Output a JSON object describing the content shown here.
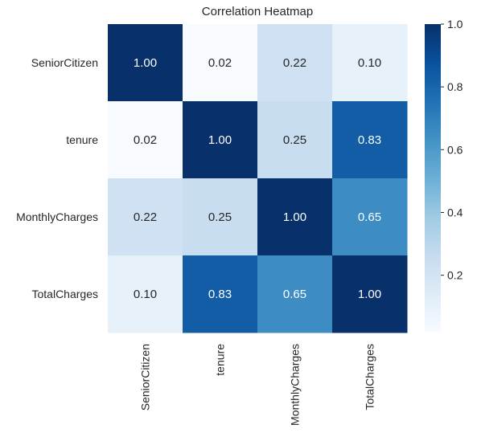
{
  "chart_data": {
    "type": "heatmap",
    "title": "Correlation Heatmap",
    "xlabel": "",
    "ylabel": "",
    "x_categories": [
      "SeniorCitizen",
      "tenure",
      "MonthlyCharges",
      "TotalCharges"
    ],
    "y_categories": [
      "SeniorCitizen",
      "tenure",
      "MonthlyCharges",
      "TotalCharges"
    ],
    "values": [
      [
        1.0,
        0.02,
        0.22,
        0.1
      ],
      [
        0.02,
        1.0,
        0.25,
        0.83
      ],
      [
        0.22,
        0.25,
        1.0,
        0.65
      ],
      [
        0.1,
        0.83,
        0.65,
        1.0
      ]
    ],
    "annotation_format": "0.00",
    "colormap": "Blues",
    "colorbar": {
      "range": [
        0.02,
        1.0
      ],
      "ticks": [
        0.2,
        0.4,
        0.6,
        0.8,
        1.0
      ],
      "tick_labels": [
        "0.2",
        "0.4",
        "0.6",
        "0.8",
        "1.0"
      ]
    },
    "grid": false,
    "legend": "colorbar-right"
  }
}
